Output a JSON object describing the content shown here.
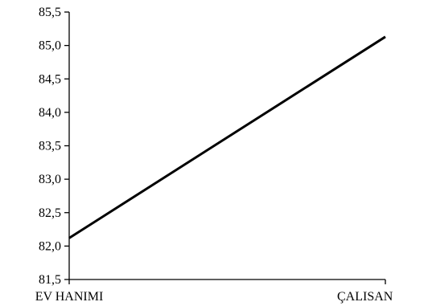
{
  "chart_data": {
    "type": "line",
    "categories": [
      "EV HANIMI",
      "ÇALISAN"
    ],
    "series": [
      {
        "values": [
          82.12,
          85.13
        ],
        "color": "#000000"
      }
    ],
    "title": "",
    "xlabel": "",
    "ylabel": "",
    "ylim": [
      81.5,
      85.5
    ],
    "yticks": [
      "85,5",
      "85,0",
      "84,5",
      "84,0",
      "83,5",
      "83,0",
      "82,5",
      "82,0",
      "81,5"
    ],
    "grid": false,
    "legend": "none"
  }
}
